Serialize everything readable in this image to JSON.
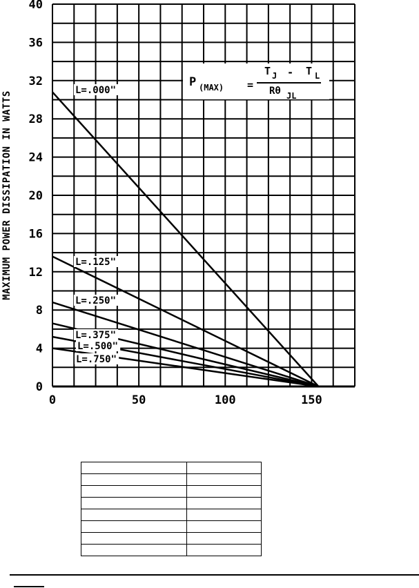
{
  "chart_data": {
    "type": "line",
    "title": "",
    "xlabel": "",
    "ylabel": "MAXIMUM POWER DISSIPATION IN WATTS",
    "xlim": [
      0,
      175
    ],
    "ylim": [
      0,
      40
    ],
    "x_ticks": [
      "0",
      "50",
      "100",
      "150"
    ],
    "y_ticks": [
      "0",
      "4",
      "8",
      "12",
      "16",
      "20",
      "24",
      "28",
      "32",
      "36",
      "40"
    ],
    "grid": true,
    "formula": {
      "lhs": "P",
      "lhs_sub": "(MAX)",
      "equals": "=",
      "numerator": "T",
      "num_sub1": "J",
      "minus": "-",
      "num_t2": "T",
      "num_sub2": "L",
      "denominator": "Rθ",
      "den_sub": "JL"
    },
    "series": [
      {
        "name": "L=.000\"",
        "x": [
          0,
          154
        ],
        "y": [
          30.8,
          0
        ]
      },
      {
        "name": "L=.125\"",
        "x": [
          0,
          154
        ],
        "y": [
          13.6,
          0
        ]
      },
      {
        "name": "L=.250\"",
        "x": [
          0,
          154
        ],
        "y": [
          8.8,
          0
        ]
      },
      {
        "name": "L=.375\"",
        "x": [
          0,
          154
        ],
        "y": [
          6.6,
          0
        ]
      },
      {
        "name": "L=.500\"",
        "x": [
          0,
          154
        ],
        "y": [
          5.2,
          0
        ]
      },
      {
        "name": "L=.750\"",
        "x": [
          0,
          154
        ],
        "y": [
          4.0,
          0
        ]
      }
    ]
  }
}
